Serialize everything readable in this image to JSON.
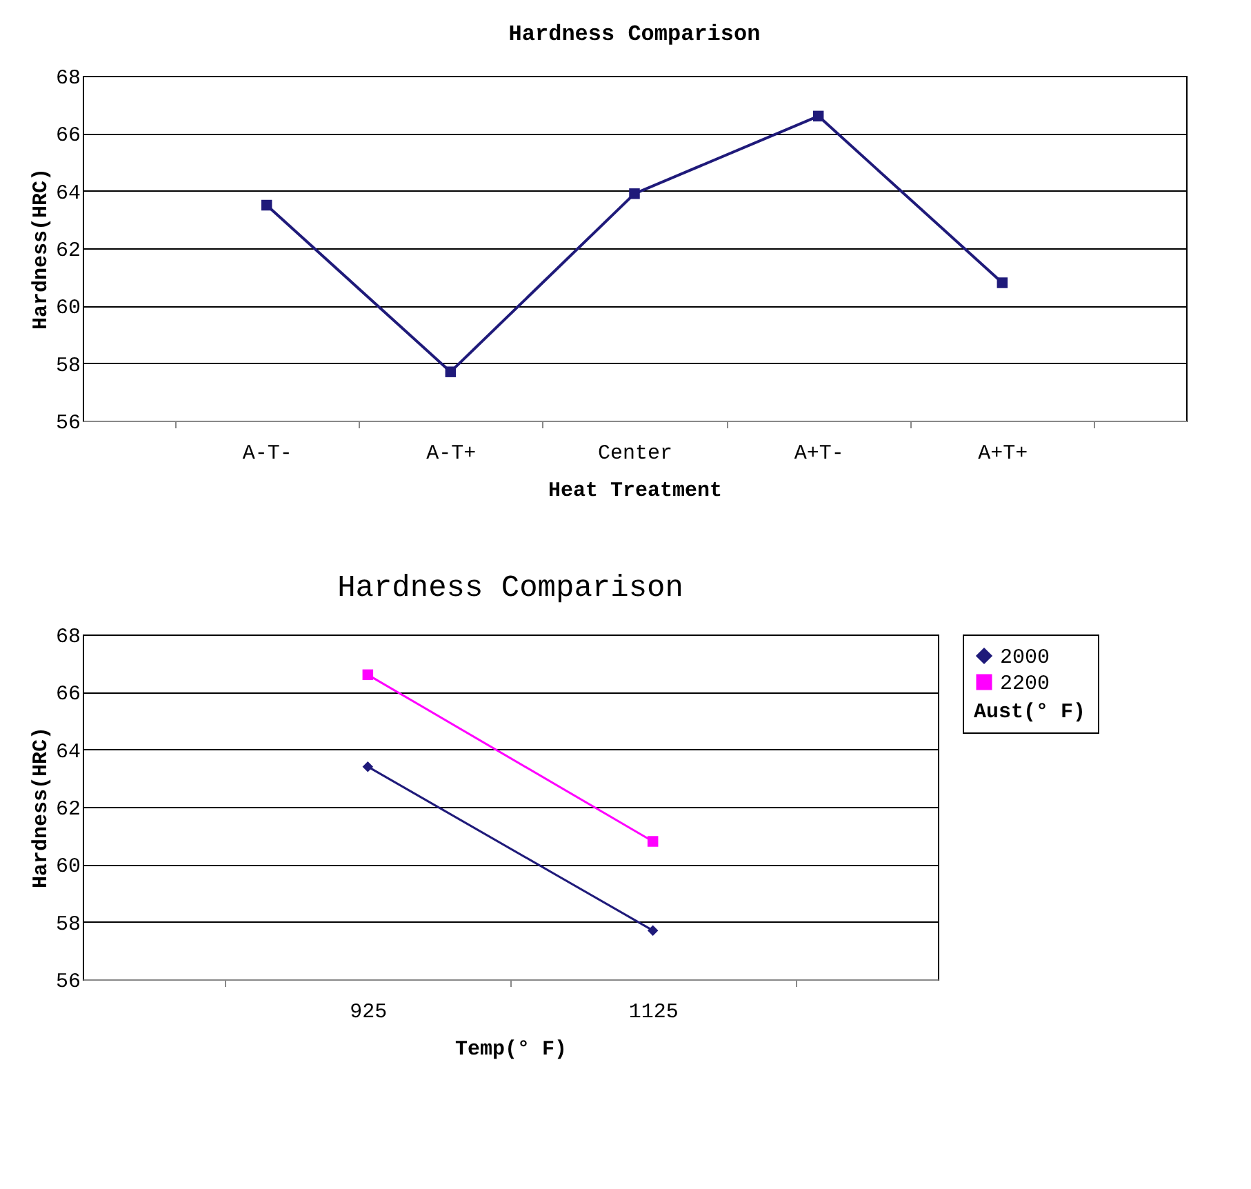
{
  "chart_data": [
    {
      "type": "line",
      "title": "Hardness Comparison",
      "xlabel": "Heat Treatment",
      "ylabel": "Hardness(HRC)",
      "categories": [
        "A-T-",
        "A-T+",
        "Center",
        "A+T-",
        "A+T+"
      ],
      "series": [
        {
          "color": "#1f1a7a",
          "values": [
            63.5,
            57.7,
            63.9,
            66.6,
            60.8
          ],
          "marker": "square"
        }
      ],
      "ylim": [
        56,
        68
      ],
      "yticks": [
        56,
        58,
        60,
        62,
        64,
        66,
        68
      ],
      "grid": "y",
      "legend": false
    },
    {
      "type": "line",
      "title": "Hardness Comparison",
      "xlabel": "Temp(° F)",
      "ylabel": "Hardness(HRC)",
      "legend_title": "Aust(° F)",
      "categories": [
        "925",
        "1125"
      ],
      "series": [
        {
          "name": "2000",
          "color": "#1f1a7a",
          "values": [
            63.4,
            57.7
          ],
          "marker": "diamond"
        },
        {
          "name": "2200",
          "color": "#ff00ff",
          "values": [
            66.6,
            60.8
          ],
          "marker": "square"
        }
      ],
      "ylim": [
        56,
        68
      ],
      "yticks": [
        56,
        58,
        60,
        62,
        64,
        66,
        68
      ],
      "grid": "y",
      "legend": "right"
    }
  ]
}
